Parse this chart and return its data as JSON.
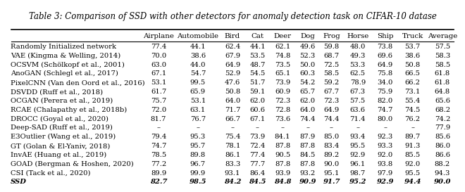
{
  "title": "Table 3: Comparison of SSD with other detectors for anomaly detection task on CIFAR-10 datase",
  "columns": [
    "",
    "Airplane",
    "Automobile",
    "Bird",
    "Cat",
    "Deer",
    "Dog",
    "Frog",
    "Horse",
    "Ship",
    "Truck",
    "Average"
  ],
  "rows": [
    [
      "Randomly Initialized network",
      "77.4",
      "44.1",
      "62.4",
      "44.1",
      "62.1",
      "49.6",
      "59.8",
      "48.0",
      "73.8",
      "53.7",
      "57.5"
    ],
    [
      "VAE (Kingma & Welling, 2014)",
      "70.0",
      "38.6",
      "67.9",
      "53.5",
      "74.8",
      "52.3",
      "68.7",
      "49.3",
      "69.6",
      "38.6",
      "58.3"
    ],
    [
      "OCSVM (Schölkopf et al., 2001)",
      "63.0",
      "44.0",
      "64.9",
      "48.7",
      "73.5",
      "50.0",
      "72.5",
      "53.3",
      "64.9",
      "50.8",
      "58.5"
    ],
    [
      "AnoGAN (Schlegl et al., 2017)",
      "67.1",
      "54.7",
      "52.9",
      "54.5",
      "65.1",
      "60.3",
      "58.5",
      "62.5",
      "75.8",
      "66.5",
      "61.8"
    ],
    [
      "PixelCNN (Van den Oord et al., 2016)",
      "53.1",
      "99.5",
      "47.6",
      "51.7",
      "73.9",
      "54.2",
      "59.2",
      "78.9",
      "34.0",
      "66.2",
      "61.8"
    ],
    [
      "DSVDD (Ruff et al., 2018)",
      "61.7",
      "65.9",
      "50.8",
      "59.1",
      "60.9",
      "65.7",
      "67.7",
      "67.3",
      "75.9",
      "73.1",
      "64.8"
    ],
    [
      "OCGAN (Perera et al., 2019)",
      "75.7",
      "53.1",
      "64.0",
      "62.0",
      "72.3",
      "62.0",
      "72.3",
      "57.5",
      "82.0",
      "55.4",
      "65.6"
    ],
    [
      "RCAE (Chalapathy et al., 2018b)",
      "72.0",
      "63.1",
      "71.7",
      "60.6",
      "72.8",
      "64.0",
      "64.9",
      "63.6",
      "74.7",
      "74.5",
      "68.2"
    ],
    [
      "DROCC (Goyal et al., 2020)",
      "81.7",
      "76.7",
      "66.7",
      "67.1",
      "73.6",
      "74.4",
      "74.4",
      "71.4",
      "80.0",
      "76.2",
      "74.2"
    ],
    [
      "Deep-SAD (Ruff et al., 2019)",
      "–",
      "–",
      "–",
      "–",
      "–",
      "–",
      "–",
      "–",
      "–",
      "–",
      "77.9"
    ],
    [
      "E3Outlier (Wang et al., 2019)",
      "79.4",
      "95.3",
      "75.4",
      "73.9",
      "84.1",
      "87.9",
      "85.0",
      "93.4",
      "92.3",
      "89.7",
      "85.6"
    ],
    [
      "GT (Golan & El-Yaniv, 2018)",
      "74.7",
      "95.7",
      "78.1",
      "72.4",
      "87.8",
      "87.8",
      "83.4",
      "95.5",
      "93.3",
      "91.3",
      "86.0"
    ],
    [
      "InvAE (Huang et al., 2019)",
      "78.5",
      "89.8",
      "86.1",
      "77.4",
      "90.5",
      "84.5",
      "89.2",
      "92.9",
      "92.0",
      "85.5",
      "86.6"
    ],
    [
      "GOAD (Bergman & Hoshen, 2020)",
      "77.2",
      "96.7",
      "83.3",
      "77.7",
      "87.8",
      "87.8",
      "90.0",
      "96.1",
      "93.8",
      "92.0",
      "88.2"
    ],
    [
      "CSI (Tack et al., 2020)",
      "89.9",
      "99.9",
      "93.1",
      "86.4",
      "93.9",
      "93.2",
      "95.1",
      "98.7",
      "97.9",
      "95.5",
      "94.3"
    ],
    [
      "SSD",
      "82.7",
      "98.5",
      "84.2",
      "84.5",
      "84.8",
      "90.9",
      "91.7",
      "95.2",
      "92.9",
      "94.4",
      "90.0"
    ]
  ],
  "bold_row": 15,
  "col_widths": [
    2.8,
    0.75,
    0.9,
    0.55,
    0.5,
    0.55,
    0.5,
    0.5,
    0.6,
    0.55,
    0.6,
    0.65
  ],
  "font_size": 7.2,
  "header_font_size": 7.4,
  "title_font_size": 8.5,
  "fig_width": 6.4,
  "fig_height": 2.47
}
